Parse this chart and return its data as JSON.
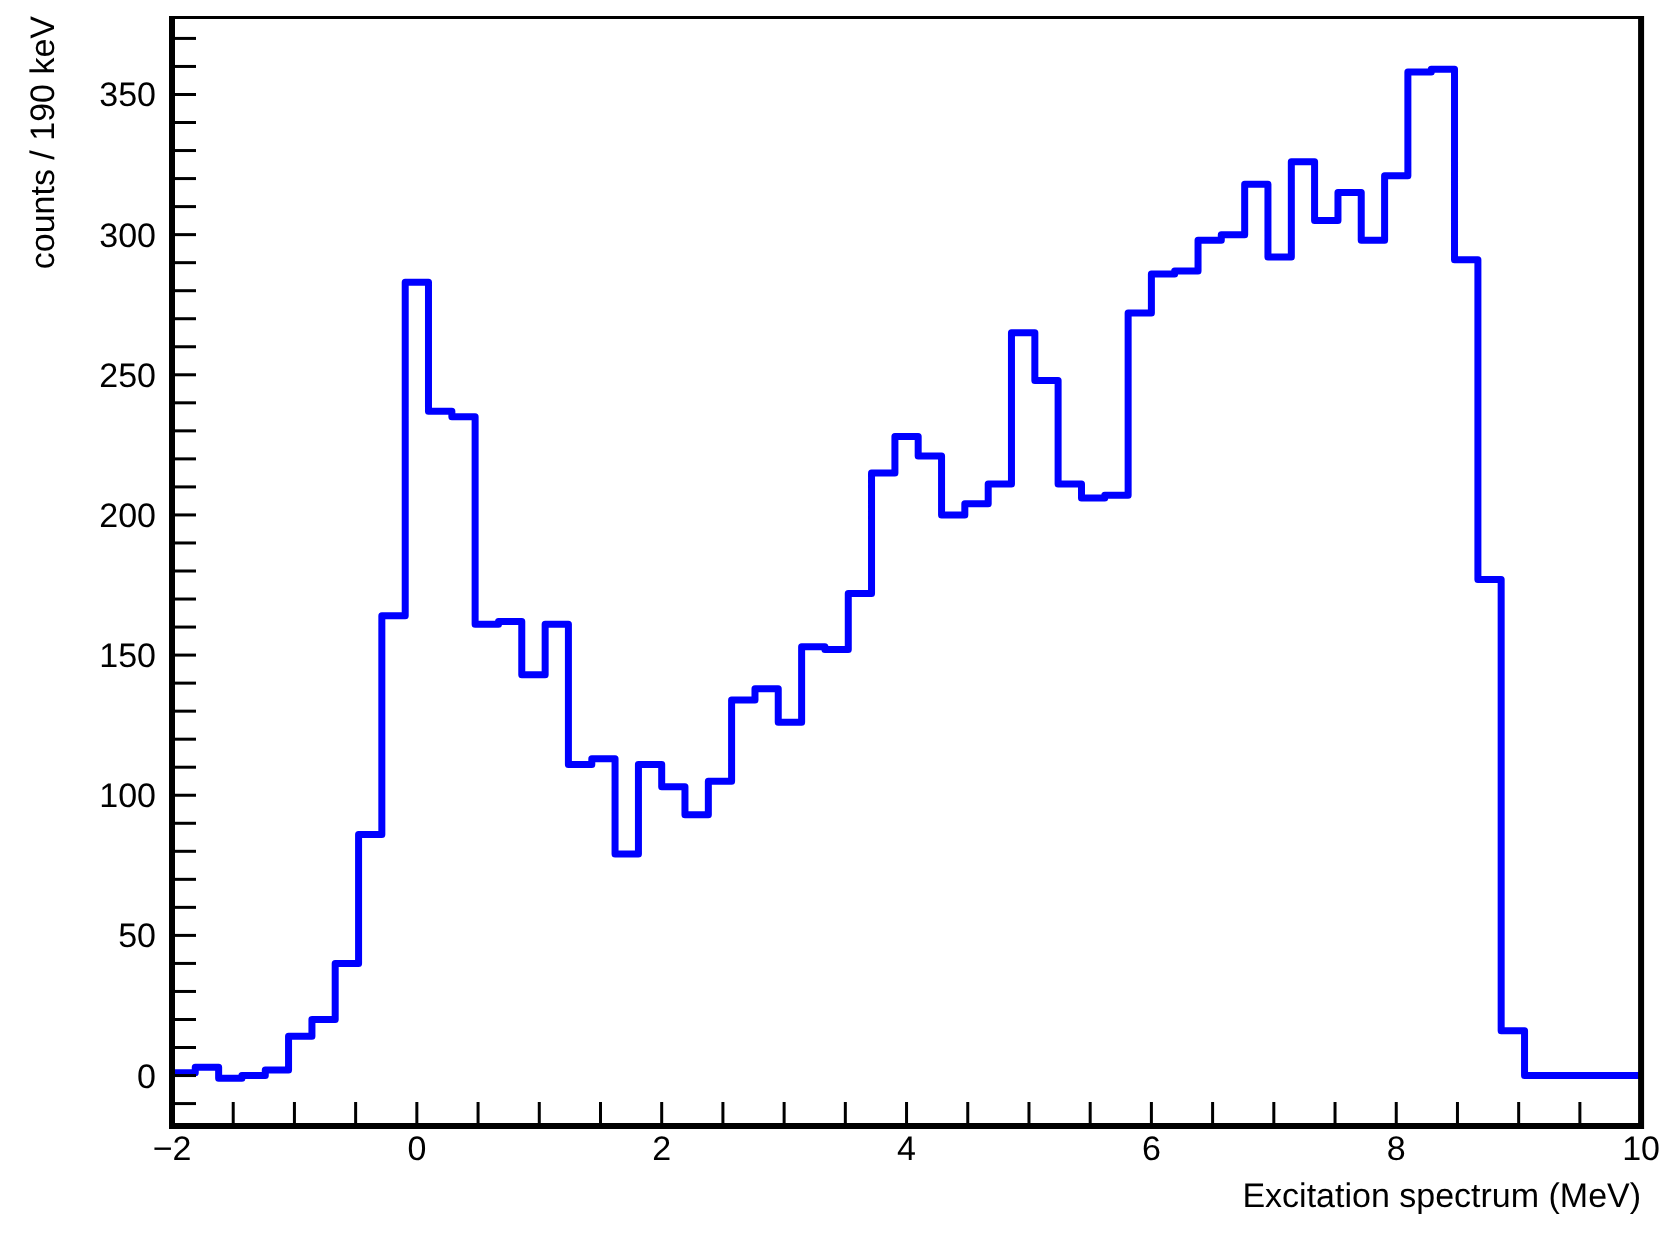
{
  "chart_data": {
    "type": "histogram",
    "xlabel": "Excitation spectrum (MeV)",
    "ylabel": "counts / 190 keV",
    "bins": [
      -2,
      -1.81,
      -1.619,
      -1.429,
      -1.238,
      -1.048,
      -0.857,
      -0.667,
      -0.476,
      -0.286,
      -0.095,
      0.095,
      0.286,
      0.476,
      0.667,
      0.857,
      1.048,
      1.238,
      1.429,
      1.619,
      1.81,
      2,
      2.19,
      2.381,
      2.571,
      2.762,
      2.952,
      3.143,
      3.333,
      3.524,
      3.714,
      3.905,
      4.095,
      4.286,
      4.476,
      4.667,
      4.857,
      5.048,
      5.238,
      5.429,
      5.619,
      5.81,
      6,
      6.19,
      6.381,
      6.571,
      6.762,
      6.952,
      7.143,
      7.333,
      7.524,
      7.714,
      7.905,
      8.095,
      8.286,
      8.476,
      8.667,
      8.857,
      9.048,
      9.238,
      9.429,
      9.619,
      9.81,
      10
    ],
    "values": [
      1,
      3,
      -1,
      0,
      2,
      14,
      20,
      40,
      86,
      164,
      283,
      237,
      235,
      161,
      162,
      143,
      161,
      111,
      113,
      79,
      111,
      103,
      93,
      105,
      134,
      138,
      126,
      153,
      152,
      172,
      215,
      228,
      221,
      200,
      204,
      211,
      265,
      248,
      211,
      206,
      207,
      272,
      286,
      287,
      298,
      300,
      318,
      292,
      326,
      305,
      315,
      298,
      321,
      358,
      359,
      291,
      177,
      16,
      0,
      0,
      0,
      0,
      0
    ],
    "color": "#0000ff",
    "xlim": [
      -2,
      10
    ],
    "ylim": [
      -18,
      378
    ],
    "xticks": [
      {
        "value": -2,
        "label": "−2"
      },
      {
        "value": -1.5,
        "label": null
      },
      {
        "value": -1,
        "label": null
      },
      {
        "value": -0.5,
        "label": null
      },
      0,
      {
        "value": 0.5,
        "label": null
      },
      {
        "value": 1,
        "label": null
      },
      {
        "value": 1.5,
        "label": null
      },
      2,
      {
        "value": 2.5,
        "label": null
      },
      {
        "value": 3,
        "label": null
      },
      {
        "value": 3.5,
        "label": null
      },
      4,
      {
        "value": 4.5,
        "label": null
      },
      {
        "value": 5,
        "label": null
      },
      {
        "value": 5.5,
        "label": null
      },
      6,
      {
        "value": 6.5,
        "label": null
      },
      {
        "value": 7,
        "label": null
      },
      {
        "value": 7.5,
        "label": null
      },
      8,
      {
        "value": 8.5,
        "label": null
      },
      {
        "value": 9,
        "label": null
      },
      {
        "value": 9.5,
        "label": null
      },
      10
    ],
    "yticks": [
      {
        "value": -10,
        "label": null
      },
      0,
      {
        "value": 10,
        "label": null
      },
      {
        "value": 20,
        "label": null
      },
      {
        "value": 30,
        "label": null
      },
      {
        "value": 40,
        "label": null
      },
      50,
      {
        "value": 60,
        "label": null
      },
      {
        "value": 70,
        "label": null
      },
      {
        "value": 80,
        "label": null
      },
      {
        "value": 90,
        "label": null
      },
      100,
      {
        "value": 110,
        "label": null
      },
      {
        "value": 120,
        "label": null
      },
      {
        "value": 130,
        "label": null
      },
      {
        "value": 140,
        "label": null
      },
      150,
      {
        "value": 160,
        "label": null
      },
      {
        "value": 170,
        "label": null
      },
      {
        "value": 180,
        "label": null
      },
      {
        "value": 190,
        "label": null
      },
      200,
      {
        "value": 210,
        "label": null
      },
      {
        "value": 220,
        "label": null
      },
      {
        "value": 230,
        "label": null
      },
      {
        "value": 240,
        "label": null
      },
      250,
      {
        "value": 260,
        "label": null
      },
      {
        "value": 270,
        "label": null
      },
      {
        "value": 280,
        "label": null
      },
      {
        "value": 290,
        "label": null
      },
      300,
      {
        "value": 310,
        "label": null
      },
      {
        "value": 320,
        "label": null
      },
      {
        "value": 330,
        "label": null
      },
      {
        "value": 340,
        "label": null
      },
      350,
      {
        "value": 360,
        "label": null
      },
      {
        "value": 370,
        "label": null
      }
    ],
    "grid": false,
    "legend": false
  }
}
